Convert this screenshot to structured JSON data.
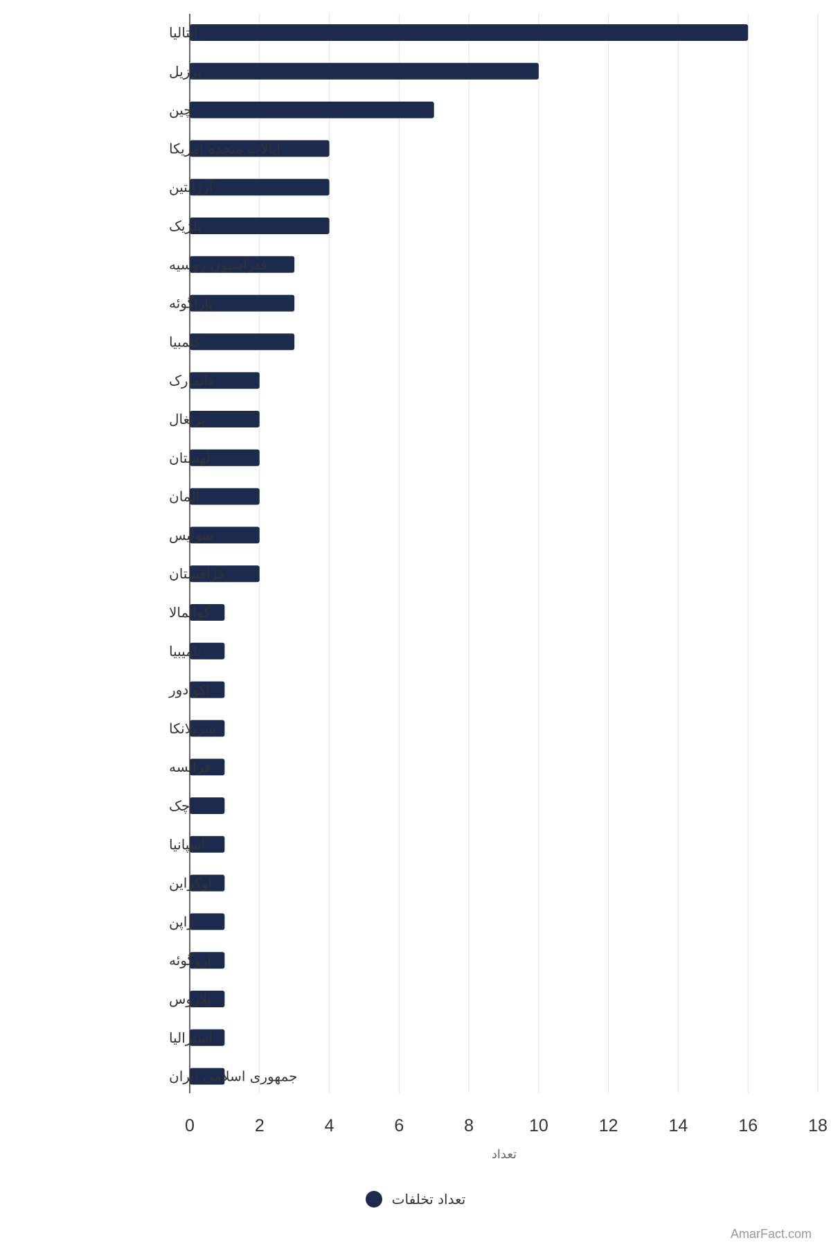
{
  "chart_data": {
    "type": "bar",
    "orientation": "horizontal",
    "categories": [
      "ایتالیا",
      "برزیل",
      "چین",
      "ایالات متحده آمریکا",
      "آرژانتین",
      "بلژیک",
      "فدراسیون روسیه",
      "پاراگوئه",
      "کلمبیا",
      "دانمارک",
      "پرتغال",
      "لهستان",
      "آلمان",
      "سوئیس",
      "قزاقستان",
      "گواتمالا",
      "نامیبیا",
      "اکوادور",
      "سریلانکا",
      "فرانسه",
      "چک",
      "اسپانیا",
      "اوکراین",
      "ژاپن",
      "اروگوئه",
      "بلاروس",
      "استرالیا",
      "جمهوری اسلامی ایران"
    ],
    "series": [
      {
        "name": "تعداد تخلفات",
        "values": [
          16,
          10,
          7,
          4,
          4,
          4,
          3,
          3,
          3,
          2,
          2,
          2,
          2,
          2,
          2,
          1,
          1,
          1,
          1,
          1,
          1,
          1,
          1,
          1,
          1,
          1,
          1,
          1
        ]
      }
    ],
    "xlim": [
      0,
      18
    ],
    "x_ticks": [
      0,
      2,
      4,
      6,
      8,
      10,
      12,
      14,
      16,
      18
    ],
    "xlabel": "تعداد",
    "ylabel": "",
    "title": "",
    "grid": true,
    "legend_position": "bottom",
    "bar_color": "#1c2a4d",
    "grid_color": "#e6e6e6",
    "axis_color": "#333333"
  },
  "legend": {
    "label": "تعداد تخلفات",
    "color": "#1c2a4d"
  },
  "credit": "AmarFact.com"
}
